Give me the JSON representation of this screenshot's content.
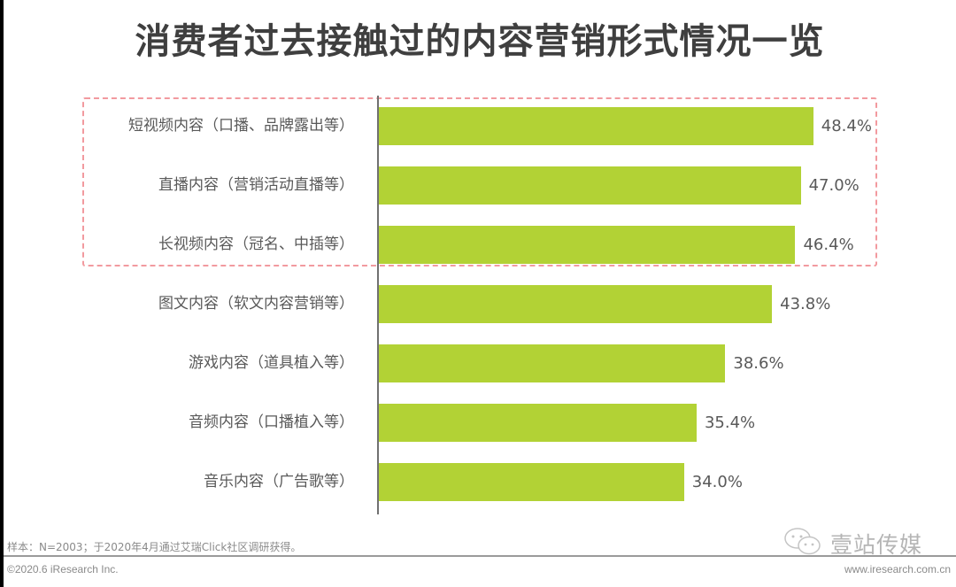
{
  "header": {
    "title": "消费者过去接触过的内容营销形式情况一览"
  },
  "colors": {
    "bar": "#b2d235",
    "highlight_border": "#f29a9f",
    "text": "#595959",
    "title": "#3f3f3f"
  },
  "chart_data": {
    "type": "bar",
    "orientation": "horizontal",
    "title": "消费者过去接触过的内容营销形式情况一览",
    "xlabel": "",
    "ylabel": "",
    "categories": [
      "短视频内容（口播、品牌露出等）",
      "直播内容（营销活动直播等）",
      "长视频内容（冠名、中插等）",
      "图文内容（软文内容营销等）",
      "游戏内容（道具植入等）",
      "音频内容（口播植入等）",
      "音乐内容（广告歌等）"
    ],
    "values": [
      48.4,
      47.0,
      46.4,
      43.8,
      38.6,
      35.4,
      34.0
    ],
    "value_labels": [
      "48.4%",
      "47.0%",
      "46.4%",
      "43.8%",
      "38.6%",
      "35.4%",
      "34.0%"
    ],
    "unit": "%",
    "grid": false,
    "legend": null,
    "annotations": [
      "Dashed red box highlights top 3 categories"
    ]
  },
  "footer": {
    "note": "样本：N=2003；于2020年4月通过艾瑞Click社区调研获得。",
    "copyright": "©2020.6 iResearch Inc.",
    "url": "www.iresearch.com.cn",
    "watermark": "壹站传媒"
  }
}
